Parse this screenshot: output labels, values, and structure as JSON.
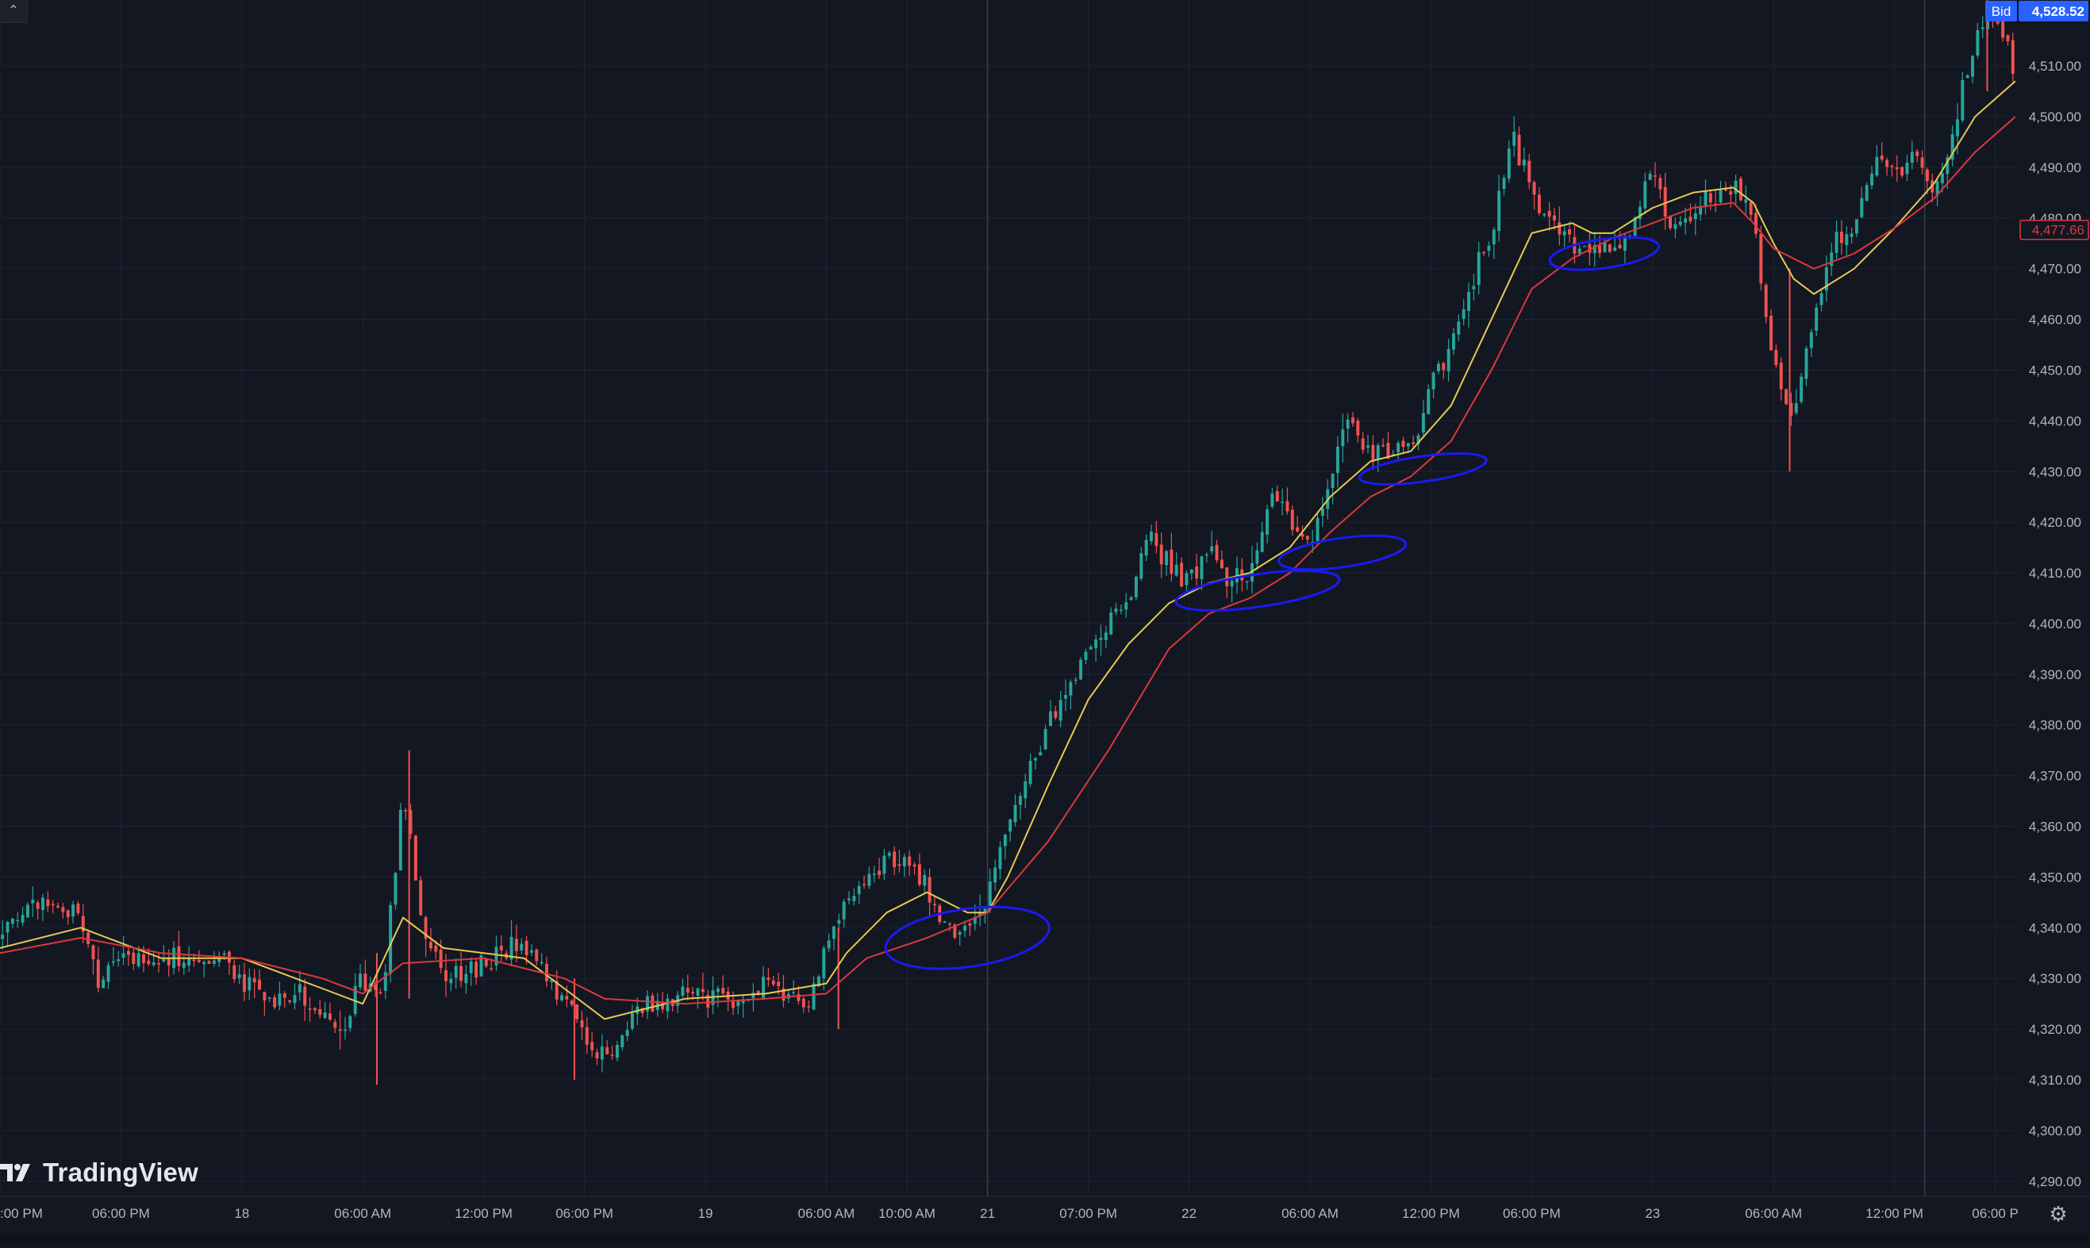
{
  "window": {
    "brand": "TradingView"
  },
  "toolbar": {
    "collapse_icon": "chevron-up-icon",
    "settings_icon": "gear-icon"
  },
  "colors": {
    "background": "#131722",
    "grid": "#1f2330",
    "up": "#26a69a",
    "down": "#ef5350",
    "ma_fast": "#e5c952",
    "ma_slow": "#d9383f",
    "annotation": "#1b1bf0",
    "bid_badge": "#2962ff"
  },
  "price_tags": {
    "bid": {
      "label": "Bid",
      "value": "4,528.52",
      "price": 4528.52
    },
    "ma": {
      "value": "4,477.66",
      "price": 4477.66
    }
  },
  "chart_data": {
    "type": "candlestick",
    "y_axis": {
      "min": 4287,
      "max": 4523,
      "ticks": [
        4290,
        4300,
        4310,
        4320,
        4330,
        4340,
        4350,
        4360,
        4370,
        4380,
        4390,
        4400,
        4410,
        4420,
        4430,
        4440,
        4450,
        4460,
        4470,
        4480,
        4490,
        4500,
        4510
      ],
      "tick_labels": [
        "4,290.00",
        "4,300.00",
        "4,310.00",
        "4,320.00",
        "4,330.00",
        "4,340.00",
        "4,350.00",
        "4,360.00",
        "4,370.00",
        "4,380.00",
        "4,390.00",
        "4,400.00",
        "4,410.00",
        "4,420.00",
        "4,430.00",
        "4,440.00",
        "4,450.00",
        "4,460.00",
        "4,470.00",
        "4,480.00",
        "4,490.00",
        "4,500.00",
        "4,510.00"
      ]
    },
    "x_axis": {
      "labels": [
        {
          "t": 0,
          "text": ":00 PM"
        },
        {
          "t": 6,
          "text": "06:00 PM"
        },
        {
          "t": 12,
          "text": "18"
        },
        {
          "t": 18,
          "text": "06:00 AM"
        },
        {
          "t": 24,
          "text": "12:00 PM"
        },
        {
          "t": 29,
          "text": "06:00 PM"
        },
        {
          "t": 35,
          "text": "19"
        },
        {
          "t": 41,
          "text": "06:00 AM"
        },
        {
          "t": 45,
          "text": "10:00 AM"
        },
        {
          "t": 49,
          "text": "21"
        },
        {
          "t": 54,
          "text": "07:00 PM"
        },
        {
          "t": 59,
          "text": "22"
        },
        {
          "t": 65,
          "text": "06:00 AM"
        },
        {
          "t": 71,
          "text": "12:00 PM"
        },
        {
          "t": 76,
          "text": "06:00 PM"
        },
        {
          "t": 82,
          "text": "23"
        },
        {
          "t": 88,
          "text": "06:00 AM"
        },
        {
          "t": 94,
          "text": "12:00 PM"
        },
        {
          "t": 99,
          "text": "06:00 P"
        }
      ],
      "range": [
        0,
        100
      ]
    },
    "price_keypoints": [
      [
        0,
        4338
      ],
      [
        2,
        4345
      ],
      [
        4,
        4342
      ],
      [
        5,
        4328
      ],
      [
        6,
        4335
      ],
      [
        8,
        4334
      ],
      [
        11,
        4335
      ],
      [
        13,
        4325
      ],
      [
        15,
        4327
      ],
      [
        17,
        4318
      ],
      [
        18,
        4330
      ],
      [
        19,
        4326
      ],
      [
        20,
        4368
      ],
      [
        21,
        4340
      ],
      [
        22,
        4330
      ],
      [
        24,
        4333
      ],
      [
        26,
        4337
      ],
      [
        28,
        4326
      ],
      [
        29,
        4318
      ],
      [
        30,
        4314
      ],
      [
        32,
        4325
      ],
      [
        34,
        4327
      ],
      [
        36,
        4325
      ],
      [
        38,
        4329
      ],
      [
        40,
        4324
      ],
      [
        41,
        4335
      ],
      [
        42,
        4345
      ],
      [
        44,
        4353
      ],
      [
        45,
        4355
      ],
      [
        46,
        4348
      ],
      [
        47,
        4340
      ],
      [
        48,
        4338
      ],
      [
        49,
        4345
      ],
      [
        50,
        4360
      ],
      [
        51,
        4372
      ],
      [
        52,
        4380
      ],
      [
        54,
        4395
      ],
      [
        56,
        4405
      ],
      [
        57,
        4418
      ],
      [
        58,
        4412
      ],
      [
        59,
        4408
      ],
      [
        60,
        4414
      ],
      [
        61,
        4408
      ],
      [
        62,
        4410
      ],
      [
        63,
        4425
      ],
      [
        64,
        4420
      ],
      [
        65,
        4415
      ],
      [
        66,
        4430
      ],
      [
        67,
        4440
      ],
      [
        68,
        4433
      ],
      [
        69,
        4435
      ],
      [
        70,
        4434
      ],
      [
        71,
        4448
      ],
      [
        72,
        4455
      ],
      [
        73,
        4468
      ],
      [
        74,
        4477
      ],
      [
        75,
        4497
      ],
      [
        76,
        4485
      ],
      [
        77,
        4480
      ],
      [
        78,
        4475
      ],
      [
        79,
        4473
      ],
      [
        80,
        4474
      ],
      [
        81,
        4480
      ],
      [
        82,
        4490
      ],
      [
        83,
        4477
      ],
      [
        84,
        4482
      ],
      [
        85,
        4484
      ],
      [
        86,
        4485
      ],
      [
        87,
        4480
      ],
      [
        88,
        4453
      ],
      [
        89,
        4440
      ],
      [
        90,
        4460
      ],
      [
        91,
        4475
      ],
      [
        92,
        4477
      ],
      [
        93,
        4492
      ],
      [
        94,
        4488
      ],
      [
        95,
        4492
      ],
      [
        96,
        4485
      ],
      [
        97,
        4500
      ],
      [
        98,
        4515
      ],
      [
        99,
        4520
      ],
      [
        100,
        4508
      ]
    ],
    "spikes": [
      {
        "t": 20.3,
        "low": 4326,
        "high": 4375
      },
      {
        "t": 18.7,
        "low": 4309,
        "high": 4335
      },
      {
        "t": 28.5,
        "low": 4310,
        "high": 4330
      },
      {
        "t": 41.6,
        "low": 4320,
        "high": 4340
      },
      {
        "t": 88.8,
        "low": 4430,
        "high": 4470
      },
      {
        "t": 98.6,
        "low": 4505,
        "high": 4525
      }
    ],
    "moving_averages": [
      {
        "kind": "fast",
        "color": "#e5c952",
        "points": [
          [
            0,
            4336
          ],
          [
            4,
            4340
          ],
          [
            8,
            4334
          ],
          [
            12,
            4334
          ],
          [
            16,
            4328
          ],
          [
            18,
            4325
          ],
          [
            20,
            4342
          ],
          [
            22,
            4336
          ],
          [
            26,
            4334
          ],
          [
            28,
            4328
          ],
          [
            30,
            4322
          ],
          [
            34,
            4326
          ],
          [
            38,
            4327
          ],
          [
            41,
            4329
          ],
          [
            42,
            4335
          ],
          [
            44,
            4343
          ],
          [
            46,
            4347
          ],
          [
            48,
            4343
          ],
          [
            49,
            4343
          ],
          [
            50,
            4350
          ],
          [
            52,
            4368
          ],
          [
            54,
            4385
          ],
          [
            56,
            4396
          ],
          [
            58,
            4404
          ],
          [
            60,
            4408
          ],
          [
            62,
            4410
          ],
          [
            64,
            4415
          ],
          [
            66,
            4425
          ],
          [
            68,
            4432
          ],
          [
            70,
            4434
          ],
          [
            72,
            4443
          ],
          [
            74,
            4460
          ],
          [
            76,
            4477
          ],
          [
            78,
            4479
          ],
          [
            79,
            4477
          ],
          [
            80,
            4477
          ],
          [
            82,
            4482
          ],
          [
            84,
            4485
          ],
          [
            86,
            4486
          ],
          [
            87,
            4483
          ],
          [
            88,
            4475
          ],
          [
            89,
            4468
          ],
          [
            90,
            4465
          ],
          [
            92,
            4470
          ],
          [
            94,
            4478
          ],
          [
            96,
            4487
          ],
          [
            98,
            4500
          ],
          [
            100,
            4507
          ]
        ]
      },
      {
        "kind": "slow",
        "color": "#d9383f",
        "points": [
          [
            0,
            4335
          ],
          [
            4,
            4338
          ],
          [
            8,
            4335
          ],
          [
            12,
            4334
          ],
          [
            16,
            4330
          ],
          [
            18,
            4327
          ],
          [
            20,
            4333
          ],
          [
            24,
            4334
          ],
          [
            28,
            4330
          ],
          [
            30,
            4326
          ],
          [
            34,
            4325
          ],
          [
            38,
            4326
          ],
          [
            41,
            4327
          ],
          [
            43,
            4334
          ],
          [
            46,
            4338
          ],
          [
            49,
            4343
          ],
          [
            52,
            4357
          ],
          [
            55,
            4375
          ],
          [
            58,
            4395
          ],
          [
            60,
            4402
          ],
          [
            62,
            4405
          ],
          [
            64,
            4410
          ],
          [
            66,
            4418
          ],
          [
            68,
            4425
          ],
          [
            70,
            4429
          ],
          [
            72,
            4436
          ],
          [
            74,
            4450
          ],
          [
            76,
            4466
          ],
          [
            78,
            4472
          ],
          [
            80,
            4476
          ],
          [
            82,
            4479
          ],
          [
            84,
            4482
          ],
          [
            86,
            4483
          ],
          [
            87,
            4479
          ],
          [
            88,
            4474
          ],
          [
            90,
            4470
          ],
          [
            92,
            4473
          ],
          [
            94,
            4478
          ],
          [
            96,
            4484
          ],
          [
            98,
            4493
          ],
          [
            100,
            4500
          ]
        ]
      }
    ],
    "annotations": [
      {
        "t": 48.0,
        "price": 4338,
        "rx": 9,
        "ry": 8,
        "shape": "ellipse"
      },
      {
        "t": 62.4,
        "price": 4406.5,
        "rx": 9,
        "ry": 4.5,
        "shape": "ellipse"
      },
      {
        "t": 66.6,
        "price": 4414,
        "rx": 7,
        "ry": 4,
        "shape": "ellipse"
      },
      {
        "t": 70.6,
        "price": 4430.5,
        "rx": 7,
        "ry": 3.5,
        "shape": "ellipse"
      },
      {
        "t": 79.6,
        "price": 4473,
        "rx": 6,
        "ry": 4,
        "shape": "ellipse"
      }
    ],
    "vertical_markers": [
      49,
      95.5
    ]
  }
}
